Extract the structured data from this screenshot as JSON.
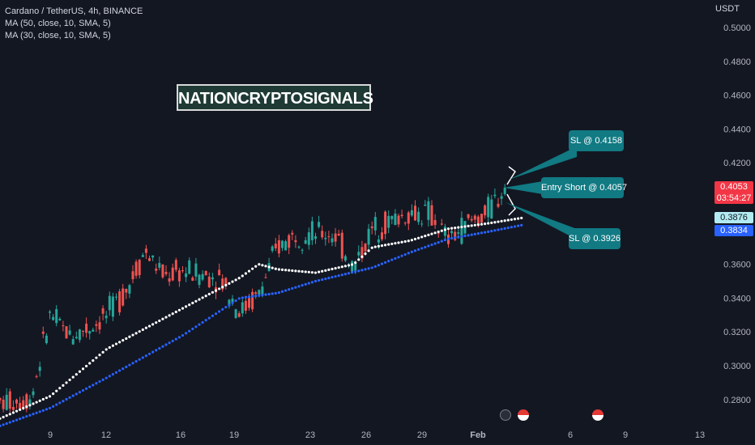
{
  "header": {
    "symbol_line": "Cardano / TetherUS, 4h, BINANCE",
    "ma_lines": [
      "MA (50, close, 10, SMA, 5)",
      "MA (30, close, 10, SMA, 5)"
    ]
  },
  "watermark_text": "NATIONCRYPTOSIGNALS",
  "callouts": {
    "sl_upper": "SL @ 0.4158",
    "entry": "Entry Short @ 0.4057",
    "sl_lower": "SL @ 0.3926"
  },
  "price_tags": {
    "last_price": "0.4053",
    "countdown": "03:54:27",
    "ma_white": "0.3876",
    "ma_blue": "0.3834"
  },
  "colors": {
    "background": "#131722",
    "up_candle": "#26a69a",
    "down_candle": "#ef5350",
    "ma50": "#ffffff",
    "ma30": "#2962ff",
    "callout": "#117a83",
    "last_price_tag": "#f23645"
  },
  "chart_data": {
    "type": "candlestick",
    "axis_unit": "USDT",
    "ylim": [
      0.27,
      0.51
    ],
    "y_ticks": [
      "0.5000",
      "0.4800",
      "0.4600",
      "0.4400",
      "0.4200",
      "0.4000",
      "0.3800",
      "0.3600",
      "0.3400",
      "0.3200",
      "0.3000",
      "0.2800"
    ],
    "x_ticks": [
      "9",
      "12",
      "16",
      "19",
      "23",
      "26",
      "29",
      "Feb",
      "6",
      "9",
      "13"
    ],
    "close_path": [
      {
        "x": "Jan 6",
        "y": 0.277
      },
      {
        "x": "Jan 8",
        "y": 0.281
      },
      {
        "x": "Jan 9",
        "y": 0.33
      },
      {
        "x": "Jan 10",
        "y": 0.318
      },
      {
        "x": "Jan 11",
        "y": 0.322
      },
      {
        "x": "Jan 12",
        "y": 0.33
      },
      {
        "x": "Jan 13",
        "y": 0.345
      },
      {
        "x": "Jan 14",
        "y": 0.368
      },
      {
        "x": "Jan 15",
        "y": 0.353
      },
      {
        "x": "Jan 16",
        "y": 0.356
      },
      {
        "x": "Jan 17",
        "y": 0.354
      },
      {
        "x": "Jan 18",
        "y": 0.352
      },
      {
        "x": "Jan 19",
        "y": 0.332
      },
      {
        "x": "Jan 20",
        "y": 0.342
      },
      {
        "x": "Jan 21",
        "y": 0.37
      },
      {
        "x": "Jan 22",
        "y": 0.378
      },
      {
        "x": "Jan 23",
        "y": 0.378
      },
      {
        "x": "Jan 24",
        "y": 0.378
      },
      {
        "x": "Jan 25",
        "y": 0.358
      },
      {
        "x": "Jan 26",
        "y": 0.381
      },
      {
        "x": "Jan 27",
        "y": 0.386
      },
      {
        "x": "Jan 28",
        "y": 0.39
      },
      {
        "x": "Jan 29",
        "y": 0.39
      },
      {
        "x": "Jan 30",
        "y": 0.374
      },
      {
        "x": "Jan 31",
        "y": 0.384
      },
      {
        "x": "Feb 1",
        "y": 0.39
      },
      {
        "x": "Feb 2",
        "y": 0.4053
      }
    ],
    "ma50_path": [
      {
        "x": "Jan 6",
        "y": 0.267
      },
      {
        "x": "Jan 9",
        "y": 0.282
      },
      {
        "x": "Jan 12",
        "y": 0.31
      },
      {
        "x": "Jan 16",
        "y": 0.334
      },
      {
        "x": "Jan 19",
        "y": 0.352
      },
      {
        "x": "Jan 20",
        "y": 0.36
      },
      {
        "x": "Jan 21",
        "y": 0.357
      },
      {
        "x": "Jan 23",
        "y": 0.355
      },
      {
        "x": "Jan 25",
        "y": 0.36
      },
      {
        "x": "Jan 26",
        "y": 0.37
      },
      {
        "x": "Jan 28",
        "y": 0.374
      },
      {
        "x": "Jan 30",
        "y": 0.381
      },
      {
        "x": "Feb 1",
        "y": 0.384
      },
      {
        "x": "Feb 3",
        "y": 0.3876
      }
    ],
    "ma30_path": [
      {
        "x": "Jan 6",
        "y": 0.263
      },
      {
        "x": "Jan 9",
        "y": 0.275
      },
      {
        "x": "Jan 12",
        "y": 0.293
      },
      {
        "x": "Jan 16",
        "y": 0.318
      },
      {
        "x": "Jan 19",
        "y": 0.34
      },
      {
        "x": "Jan 21",
        "y": 0.343
      },
      {
        "x": "Jan 23",
        "y": 0.35
      },
      {
        "x": "Jan 26",
        "y": 0.358
      },
      {
        "x": "Jan 28",
        "y": 0.367
      },
      {
        "x": "Jan 30",
        "y": 0.375
      },
      {
        "x": "Feb 1",
        "y": 0.379
      },
      {
        "x": "Feb 3",
        "y": 0.3834
      }
    ],
    "levels": {
      "entry_short": 0.4057,
      "stop_loss_upper": 0.4158,
      "stop_loss_lower": 0.3926,
      "last_price": 0.4053
    }
  }
}
